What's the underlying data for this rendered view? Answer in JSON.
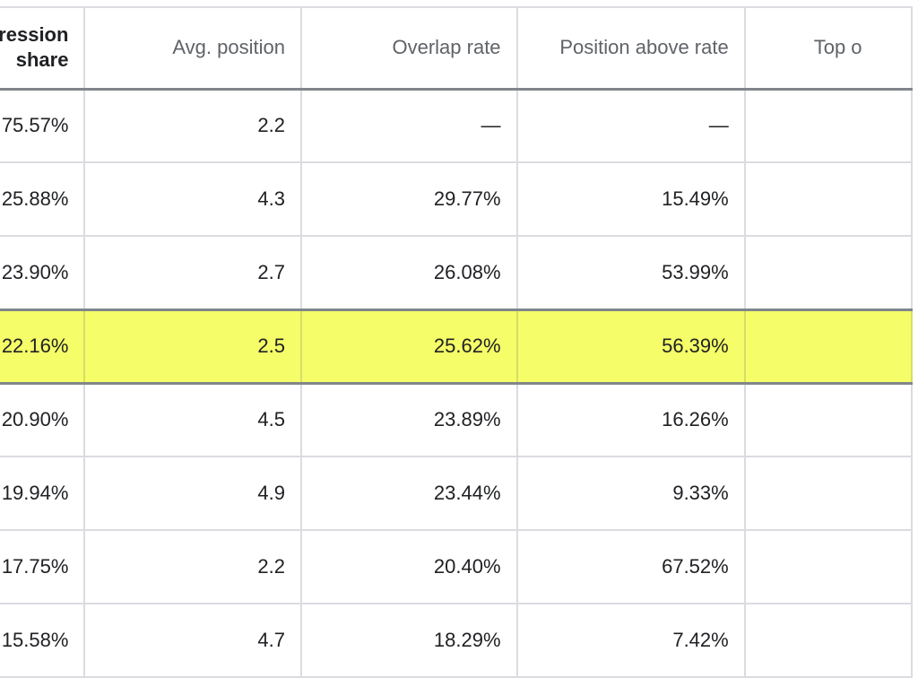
{
  "table": {
    "headers": [
      {
        "line1": "ression",
        "line2": "share"
      },
      {
        "line1": "Avg. position"
      },
      {
        "line1": "Overlap rate"
      },
      {
        "line1": "Position above rate"
      },
      {
        "line1": "Top o"
      }
    ],
    "rows": [
      {
        "impression_share": "75.57%",
        "avg_position": "2.2",
        "overlap_rate": "—",
        "position_above_rate": "—",
        "top_of_page": ""
      },
      {
        "impression_share": "25.88%",
        "avg_position": "4.3",
        "overlap_rate": "29.77%",
        "position_above_rate": "15.49%",
        "top_of_page": ""
      },
      {
        "impression_share": "23.90%",
        "avg_position": "2.7",
        "overlap_rate": "26.08%",
        "position_above_rate": "53.99%",
        "top_of_page": ""
      },
      {
        "impression_share": "22.16%",
        "avg_position": "2.5",
        "overlap_rate": "25.62%",
        "position_above_rate": "56.39%",
        "top_of_page": ""
      },
      {
        "impression_share": "20.90%",
        "avg_position": "4.5",
        "overlap_rate": "23.89%",
        "position_above_rate": "16.26%",
        "top_of_page": ""
      },
      {
        "impression_share": "19.94%",
        "avg_position": "4.9",
        "overlap_rate": "23.44%",
        "position_above_rate": "9.33%",
        "top_of_page": ""
      },
      {
        "impression_share": "17.75%",
        "avg_position": "2.2",
        "overlap_rate": "20.40%",
        "position_above_rate": "67.52%",
        "top_of_page": ""
      },
      {
        "impression_share": "15.58%",
        "avg_position": "4.7",
        "overlap_rate": "18.29%",
        "position_above_rate": "7.42%",
        "top_of_page": ""
      }
    ],
    "highlighted_row_index": 3,
    "highlight_color": "#f5fd68"
  }
}
